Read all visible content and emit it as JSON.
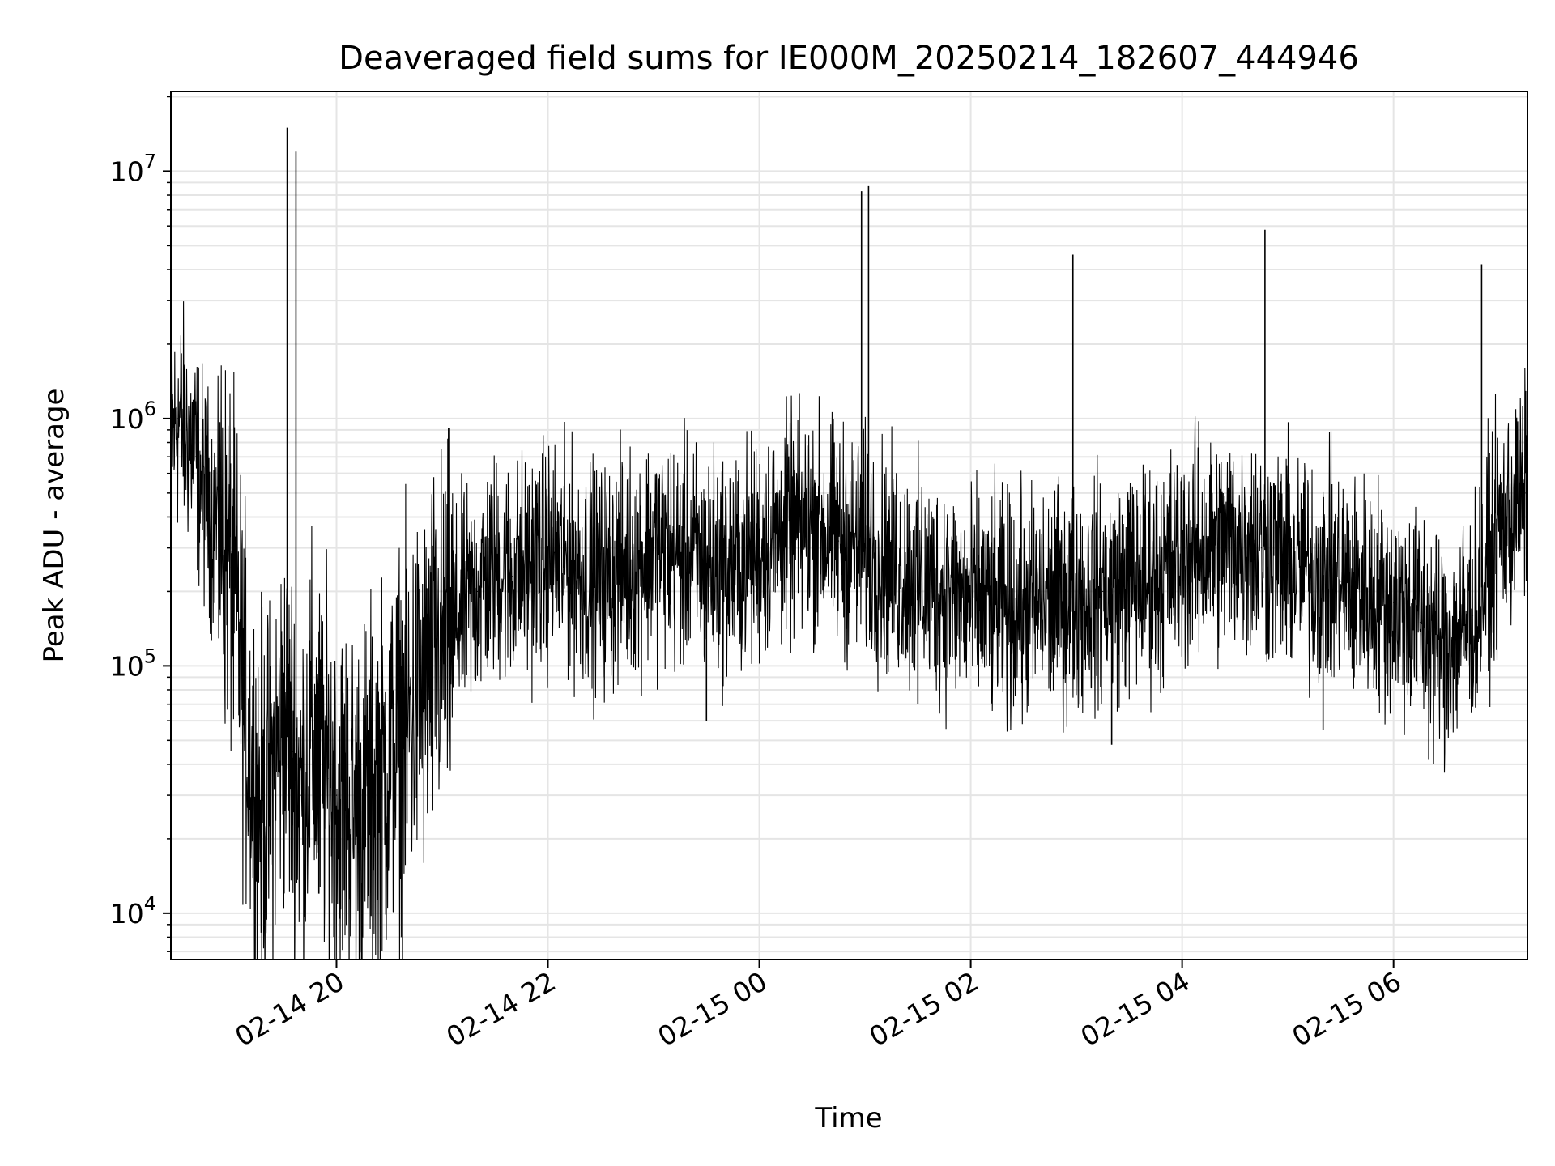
{
  "chart_data": {
    "type": "line",
    "title": "Deaveraged field sums for IE000M_20250214_182607_444946",
    "xlabel": "Time",
    "ylabel": "Peak ADU - average",
    "yscale": "log",
    "grid": true,
    "legend": "none",
    "colors": {
      "line": "#000000",
      "grid": "#e5e5e5",
      "axes": "#000000",
      "background": "#ffffff"
    },
    "xlim": [
      "2025-02-14 18:26",
      "2025-02-15 07:16"
    ],
    "ylim": [
      6500,
      21000000
    ],
    "x_ticks": [
      {
        "value": "2025-02-14 20:00",
        "label": "02-14 20"
      },
      {
        "value": "2025-02-14 22:00",
        "label": "02-14 22"
      },
      {
        "value": "2025-02-15 00:00",
        "label": "02-15 00"
      },
      {
        "value": "2025-02-15 02:00",
        "label": "02-15 02"
      },
      {
        "value": "2025-02-15 04:00",
        "label": "02-15 04"
      },
      {
        "value": "2025-02-15 06:00",
        "label": "02-15 06"
      }
    ],
    "y_ticks": [
      {
        "value": 10000,
        "base": "10",
        "exp": "4"
      },
      {
        "value": 100000,
        "base": "10",
        "exp": "5"
      },
      {
        "value": 1000000,
        "base": "10",
        "exp": "6"
      },
      {
        "value": 10000000,
        "base": "10",
        "exp": "7"
      }
    ],
    "series": [
      {
        "x": [
          "2025-02-14 18:26",
          "2025-02-14 18:30",
          "2025-02-14 18:35",
          "2025-02-14 18:40",
          "2025-02-14 18:45",
          "2025-02-14 18:50",
          "2025-02-14 18:55",
          "2025-02-14 19:00",
          "2025-02-14 19:05",
          "2025-02-14 19:10",
          "2025-02-14 19:15",
          "2025-02-14 19:20",
          "2025-02-14 19:25",
          "2025-02-14 19:30",
          "2025-02-14 19:35",
          "2025-02-14 19:40",
          "2025-02-14 19:45",
          "2025-02-14 19:50",
          "2025-02-14 19:55",
          "2025-02-14 20:00",
          "2025-02-14 20:10",
          "2025-02-14 20:20",
          "2025-02-14 20:30",
          "2025-02-14 20:40",
          "2025-02-14 20:50",
          "2025-02-14 21:00",
          "2025-02-14 21:10",
          "2025-02-14 21:20",
          "2025-02-14 21:30",
          "2025-02-14 21:40",
          "2025-02-14 21:50",
          "2025-02-14 22:00",
          "2025-02-14 22:15",
          "2025-02-14 22:30",
          "2025-02-14 22:45",
          "2025-02-14 23:00",
          "2025-02-14 23:15",
          "2025-02-14 23:30",
          "2025-02-14 23:45",
          "2025-02-15 00:00",
          "2025-02-15 00:15",
          "2025-02-15 00:30",
          "2025-02-15 00:45",
          "2025-02-15 01:00",
          "2025-02-15 01:15",
          "2025-02-15 01:30",
          "2025-02-15 01:45",
          "2025-02-15 02:00",
          "2025-02-15 02:15",
          "2025-02-15 02:30",
          "2025-02-15 02:45",
          "2025-02-15 03:00",
          "2025-02-15 03:15",
          "2025-02-15 03:30",
          "2025-02-15 03:45",
          "2025-02-15 04:00",
          "2025-02-15 04:15",
          "2025-02-15 04:30",
          "2025-02-15 04:45",
          "2025-02-15 05:00",
          "2025-02-15 05:15",
          "2025-02-15 05:30",
          "2025-02-15 05:45",
          "2025-02-15 06:00",
          "2025-02-15 06:15",
          "2025-02-15 06:30",
          "2025-02-15 06:45",
          "2025-02-15 07:00",
          "2025-02-15 07:15"
        ],
        "y": [
          800000,
          1000000,
          900000,
          700000,
          500000,
          400000,
          350000,
          250000,
          120000,
          50000,
          30000,
          25000,
          40000,
          60000,
          45000,
          30000,
          50000,
          40000,
          35000,
          30000,
          25000,
          30000,
          40000,
          60000,
          80000,
          120000,
          160000,
          200000,
          250000,
          230000,
          260000,
          280000,
          250000,
          220000,
          260000,
          300000,
          280000,
          260000,
          250000,
          300000,
          350000,
          380000,
          320000,
          300000,
          250000,
          220000,
          200000,
          180000,
          170000,
          170000,
          180000,
          190000,
          200000,
          220000,
          230000,
          280000,
          300000,
          320000,
          300000,
          260000,
          240000,
          220000,
          200000,
          180000,
          150000,
          120000,
          160000,
          350000,
          500000
        ]
      },
      {
        "x": [
          "2025-02-14 19:32",
          "2025-02-14 19:37",
          "2025-02-15 00:58",
          "2025-02-15 01:02",
          "2025-02-15 02:58",
          "2025-02-15 04:47",
          "2025-02-15 06:50"
        ],
        "y": [
          15000000,
          12000000,
          8300000,
          8700000,
          4600000,
          5800000,
          4200000
        ]
      },
      {
        "x": [
          "2025-02-14 19:30",
          "2025-02-14 19:50",
          "2025-02-14 20:02",
          "2025-02-14 20:25",
          "2025-02-14 20:40",
          "2025-02-14 23:30",
          "2025-02-15 01:30",
          "2025-02-15 03:20",
          "2025-02-15 05:20",
          "2025-02-15 06:20"
        ],
        "y": [
          10500,
          12000,
          9500,
          11500,
          23000,
          60000,
          70000,
          48000,
          55000,
          42000
        ]
      }
    ]
  }
}
